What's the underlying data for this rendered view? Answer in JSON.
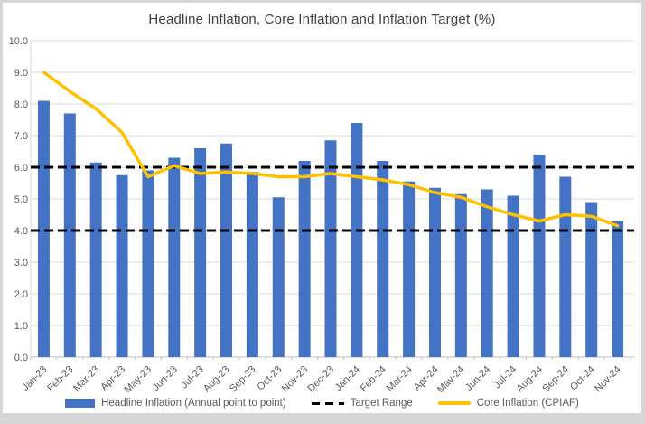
{
  "page": {
    "background": "#D6D6D6"
  },
  "chart": {
    "title": "Headline Inflation, Core Inflation and Inflation Target (%)",
    "background": "#FFFFFF",
    "colors": {
      "bar": "#4472C4",
      "core_line": "#FFC000",
      "target": "#000000",
      "grid": "#D9D9D9",
      "axis": "#BFBFBF",
      "tick_text": "#595959",
      "title_text": "#3F3F3F",
      "frame_border": "#D9D9D9",
      "page_bg": "#D6D6D6"
    }
  },
  "legend": {
    "items": [
      {
        "label": "Headline Inflation (Annual point to point)",
        "swatch": "bar"
      },
      {
        "label": "Target Range",
        "swatch": "dash"
      },
      {
        "label": "Core Inflation (CPIAF)",
        "swatch": "line"
      }
    ]
  },
  "chart_data": {
    "type": "bar",
    "title": "Headline Inflation, Core Inflation and Inflation Target (%)",
    "categories": [
      "Jan-23",
      "Feb-23",
      "Mar-23",
      "Apr-23",
      "May-23",
      "Jun-23",
      "Jul-23",
      "Aug-23",
      "Sep-23",
      "Oct-23",
      "Nov-23",
      "Dec-23",
      "Jan-24",
      "Feb-24",
      "Mar-24",
      "Apr-24",
      "May-24",
      "Jun-24",
      "Jul-24",
      "Aug-24",
      "Sep-24",
      "Oct-24",
      "Nov-24"
    ],
    "series": [
      {
        "name": "Headline Inflation (Annual point to point)",
        "type": "bar",
        "color": "#4472C4",
        "values": [
          8.1,
          7.7,
          6.15,
          5.75,
          5.9,
          6.3,
          6.6,
          6.75,
          5.85,
          5.05,
          6.2,
          6.85,
          7.4,
          6.2,
          5.55,
          5.35,
          5.15,
          5.3,
          5.1,
          6.4,
          5.7,
          4.9,
          4.3
        ]
      },
      {
        "name": "Core Inflation (CPIAF)",
        "type": "line",
        "color": "#FFC000",
        "values": [
          9.0,
          8.4,
          7.85,
          7.1,
          5.7,
          6.05,
          5.8,
          5.85,
          5.8,
          5.7,
          5.7,
          5.8,
          5.7,
          5.6,
          5.45,
          5.2,
          5.05,
          4.75,
          4.5,
          4.3,
          4.5,
          4.45,
          4.15
        ]
      },
      {
        "name": "Target Range",
        "type": "horizontal-dashed-lines",
        "color": "#000000",
        "values": [
          4.0,
          6.0
        ]
      }
    ],
    "xlabel": "",
    "ylabel": "",
    "ylim": [
      0,
      10
    ],
    "ytick_step": 1.0,
    "ytick_labels": [
      "0.0",
      "1.0",
      "2.0",
      "3.0",
      "4.0",
      "5.0",
      "6.0",
      "7.0",
      "8.0",
      "9.0",
      "10.0"
    ],
    "grid": true,
    "legend_position": "bottom"
  }
}
